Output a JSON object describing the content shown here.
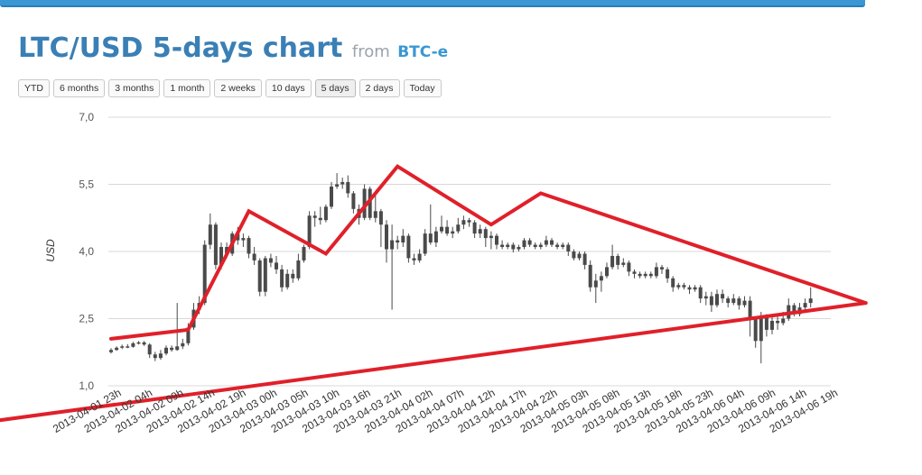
{
  "header": {
    "title": "LTC/USD 5-days chart",
    "from": "from",
    "source": "BTC-e"
  },
  "range_buttons": [
    "YTD",
    "6 months",
    "3 months",
    "1 month",
    "2 weeks",
    "10 days",
    "5 days",
    "2 days",
    "Today"
  ],
  "active_range": "5 days",
  "colors": {
    "accent": "#3a97d3",
    "title": "#3a7fb5",
    "candle": "#4a4a4a",
    "trendline": "#e0202a",
    "grid": "#d8d8d8"
  },
  "chart_data": {
    "type": "candlestick",
    "ylabel": "USD",
    "ylim": [
      1.0,
      7.0
    ],
    "y_ticks": [
      "7,0",
      "5,5",
      "4,0",
      "2,5",
      "1,0"
    ],
    "y_tick_values": [
      7.0,
      5.5,
      4.0,
      2.5,
      1.0
    ],
    "x_ticks": [
      "2013-04-01 23h",
      "2013-04-02 04h",
      "2013-04-02 09h",
      "2013-04-02 14h",
      "2013-04-02 19h",
      "2013-04-03 00h",
      "2013-04-03 05h",
      "2013-04-03 10h",
      "2013-04-03 16h",
      "2013-04-03 21h",
      "2013-04-04 02h",
      "2013-04-04 07h",
      "2013-04-04 12h",
      "2013-04-04 17h",
      "2013-04-04 22h",
      "2013-04-05 03h",
      "2013-04-05 08h",
      "2013-04-05 13h",
      "2013-04-05 18h",
      "2013-04-05 23h",
      "2013-04-06 04h",
      "2013-04-06 09h",
      "2013-04-06 14h",
      "2013-04-06 19h"
    ],
    "grid": true,
    "candles": [
      {
        "i": 0,
        "o": 1.75,
        "c": 1.8,
        "h": 1.84,
        "l": 1.72
      },
      {
        "i": 1,
        "o": 1.8,
        "c": 1.85,
        "h": 1.88,
        "l": 1.78
      },
      {
        "i": 2,
        "o": 1.85,
        "c": 1.88,
        "h": 1.92,
        "l": 1.82
      },
      {
        "i": 3,
        "o": 1.88,
        "c": 1.87,
        "h": 1.93,
        "l": 1.84
      },
      {
        "i": 4,
        "o": 1.87,
        "c": 1.95,
        "h": 1.98,
        "l": 1.85
      },
      {
        "i": 5,
        "o": 1.95,
        "c": 1.97,
        "h": 2.0,
        "l": 1.92
      },
      {
        "i": 6,
        "o": 1.97,
        "c": 1.92,
        "h": 2.0,
        "l": 1.89
      },
      {
        "i": 7,
        "o": 1.92,
        "c": 1.7,
        "h": 1.95,
        "l": 1.62
      },
      {
        "i": 8,
        "o": 1.7,
        "c": 1.62,
        "h": 1.76,
        "l": 1.55
      },
      {
        "i": 9,
        "o": 1.62,
        "c": 1.72,
        "h": 1.8,
        "l": 1.58
      },
      {
        "i": 10,
        "o": 1.72,
        "c": 1.85,
        "h": 1.9,
        "l": 1.68
      },
      {
        "i": 11,
        "o": 1.85,
        "c": 1.8,
        "h": 1.9,
        "l": 1.76
      },
      {
        "i": 12,
        "o": 1.8,
        "c": 1.88,
        "h": 2.85,
        "l": 1.78
      },
      {
        "i": 13,
        "o": 1.88,
        "c": 1.95,
        "h": 2.05,
        "l": 1.82
      },
      {
        "i": 14,
        "o": 1.95,
        "c": 2.3,
        "h": 2.4,
        "l": 1.9
      },
      {
        "i": 15,
        "o": 2.3,
        "c": 2.7,
        "h": 2.85,
        "l": 2.25
      },
      {
        "i": 16,
        "o": 2.7,
        "c": 2.85,
        "h": 3.0,
        "l": 2.6
      },
      {
        "i": 17,
        "o": 2.85,
        "c": 4.15,
        "h": 4.25,
        "l": 2.8
      },
      {
        "i": 18,
        "o": 4.15,
        "c": 4.6,
        "h": 4.85,
        "l": 4.05
      },
      {
        "i": 19,
        "o": 4.6,
        "c": 3.7,
        "h": 4.65,
        "l": 3.6
      },
      {
        "i": 20,
        "o": 3.7,
        "c": 4.1,
        "h": 4.2,
        "l": 3.6
      },
      {
        "i": 21,
        "o": 4.1,
        "c": 3.95,
        "h": 4.2,
        "l": 3.85
      },
      {
        "i": 22,
        "o": 3.95,
        "c": 4.4,
        "h": 4.45,
        "l": 3.9
      },
      {
        "i": 23,
        "o": 4.4,
        "c": 4.25,
        "h": 4.55,
        "l": 4.15
      },
      {
        "i": 24,
        "o": 4.25,
        "c": 4.3,
        "h": 4.4,
        "l": 4.1
      },
      {
        "i": 25,
        "o": 4.3,
        "c": 3.95,
        "h": 4.35,
        "l": 3.85
      },
      {
        "i": 26,
        "o": 3.95,
        "c": 3.8,
        "h": 4.1,
        "l": 3.7
      },
      {
        "i": 27,
        "o": 3.8,
        "c": 3.1,
        "h": 3.85,
        "l": 3.0
      },
      {
        "i": 28,
        "o": 3.1,
        "c": 3.85,
        "h": 3.9,
        "l": 3.0
      },
      {
        "i": 29,
        "o": 3.85,
        "c": 3.75,
        "h": 3.95,
        "l": 3.65
      },
      {
        "i": 30,
        "o": 3.75,
        "c": 3.6,
        "h": 3.9,
        "l": 3.5
      },
      {
        "i": 31,
        "o": 3.6,
        "c": 3.2,
        "h": 3.7,
        "l": 3.1
      },
      {
        "i": 32,
        "o": 3.2,
        "c": 3.5,
        "h": 3.6,
        "l": 3.15
      },
      {
        "i": 33,
        "o": 3.5,
        "c": 3.4,
        "h": 3.6,
        "l": 3.3
      },
      {
        "i": 34,
        "o": 3.4,
        "c": 3.8,
        "h": 3.95,
        "l": 3.35
      },
      {
        "i": 35,
        "o": 3.8,
        "c": 4.1,
        "h": 4.15,
        "l": 3.75
      },
      {
        "i": 36,
        "o": 4.1,
        "c": 4.8,
        "h": 4.9,
        "l": 4.05
      },
      {
        "i": 37,
        "o": 4.8,
        "c": 4.75,
        "h": 4.9,
        "l": 4.55
      },
      {
        "i": 38,
        "o": 4.75,
        "c": 4.7,
        "h": 5.0,
        "l": 4.6
      },
      {
        "i": 39,
        "o": 4.7,
        "c": 5.0,
        "h": 5.05,
        "l": 4.65
      },
      {
        "i": 40,
        "o": 5.0,
        "c": 5.45,
        "h": 5.55,
        "l": 4.95
      },
      {
        "i": 41,
        "o": 5.45,
        "c": 5.5,
        "h": 5.75,
        "l": 5.4
      },
      {
        "i": 42,
        "o": 5.5,
        "c": 5.55,
        "h": 5.65,
        "l": 5.4
      },
      {
        "i": 43,
        "o": 5.55,
        "c": 5.3,
        "h": 5.7,
        "l": 5.2
      },
      {
        "i": 44,
        "o": 5.3,
        "c": 4.95,
        "h": 5.35,
        "l": 4.85
      },
      {
        "i": 45,
        "o": 4.95,
        "c": 4.75,
        "h": 5.05,
        "l": 4.6
      },
      {
        "i": 46,
        "o": 4.75,
        "c": 5.4,
        "h": 5.5,
        "l": 4.7
      },
      {
        "i": 47,
        "o": 5.4,
        "c": 4.75,
        "h": 5.45,
        "l": 4.7
      },
      {
        "i": 48,
        "o": 4.75,
        "c": 4.9,
        "h": 5.3,
        "l": 4.65
      },
      {
        "i": 49,
        "o": 4.9,
        "c": 4.6,
        "h": 4.95,
        "l": 4.1
      },
      {
        "i": 50,
        "o": 4.6,
        "c": 4.05,
        "h": 4.7,
        "l": 3.75
      },
      {
        "i": 51,
        "o": 4.05,
        "c": 4.25,
        "h": 4.6,
        "l": 2.7
      },
      {
        "i": 52,
        "o": 4.25,
        "c": 4.2,
        "h": 4.35,
        "l": 4.05
      },
      {
        "i": 53,
        "o": 4.2,
        "c": 4.35,
        "h": 4.5,
        "l": 4.1
      },
      {
        "i": 54,
        "o": 4.35,
        "c": 3.85,
        "h": 4.4,
        "l": 3.75
      },
      {
        "i": 55,
        "o": 3.85,
        "c": 3.8,
        "h": 3.95,
        "l": 3.7
      },
      {
        "i": 56,
        "o": 3.8,
        "c": 3.95,
        "h": 4.05,
        "l": 3.75
      },
      {
        "i": 57,
        "o": 3.95,
        "c": 4.4,
        "h": 4.5,
        "l": 3.9
      },
      {
        "i": 58,
        "o": 4.4,
        "c": 4.2,
        "h": 5.05,
        "l": 4.15
      },
      {
        "i": 59,
        "o": 4.2,
        "c": 4.45,
        "h": 4.55,
        "l": 4.1
      },
      {
        "i": 60,
        "o": 4.45,
        "c": 4.55,
        "h": 4.8,
        "l": 4.4
      },
      {
        "i": 61,
        "o": 4.55,
        "c": 4.4,
        "h": 4.7,
        "l": 4.35
      },
      {
        "i": 62,
        "o": 4.4,
        "c": 4.45,
        "h": 4.55,
        "l": 4.3
      },
      {
        "i": 63,
        "o": 4.45,
        "c": 4.6,
        "h": 4.75,
        "l": 4.4
      },
      {
        "i": 64,
        "o": 4.6,
        "c": 4.7,
        "h": 4.8,
        "l": 4.5
      },
      {
        "i": 65,
        "o": 4.7,
        "c": 4.65,
        "h": 4.75,
        "l": 4.55
      },
      {
        "i": 66,
        "o": 4.65,
        "c": 4.4,
        "h": 4.7,
        "l": 4.3
      },
      {
        "i": 67,
        "o": 4.4,
        "c": 4.5,
        "h": 4.6,
        "l": 4.3
      },
      {
        "i": 68,
        "o": 4.5,
        "c": 4.3,
        "h": 4.55,
        "l": 4.1
      },
      {
        "i": 69,
        "o": 4.3,
        "c": 4.35,
        "h": 4.45,
        "l": 4.05
      },
      {
        "i": 70,
        "o": 4.35,
        "c": 4.15,
        "h": 4.4,
        "l": 4.05
      },
      {
        "i": 71,
        "o": 4.15,
        "c": 4.1,
        "h": 4.25,
        "l": 4.05
      },
      {
        "i": 72,
        "o": 4.1,
        "c": 4.15,
        "h": 4.2,
        "l": 4.05
      },
      {
        "i": 73,
        "o": 4.15,
        "c": 4.05,
        "h": 4.2,
        "l": 3.98
      },
      {
        "i": 74,
        "o": 4.05,
        "c": 4.1,
        "h": 4.15,
        "l": 4.0
      },
      {
        "i": 75,
        "o": 4.1,
        "c": 4.25,
        "h": 4.3,
        "l": 4.05
      },
      {
        "i": 76,
        "o": 4.25,
        "c": 4.15,
        "h": 4.3,
        "l": 4.1
      },
      {
        "i": 77,
        "o": 4.15,
        "c": 4.1,
        "h": 4.2,
        "l": 4.05
      },
      {
        "i": 78,
        "o": 4.1,
        "c": 4.15,
        "h": 4.2,
        "l": 4.05
      },
      {
        "i": 79,
        "o": 4.15,
        "c": 4.25,
        "h": 4.35,
        "l": 4.1
      },
      {
        "i": 80,
        "o": 4.25,
        "c": 4.15,
        "h": 4.3,
        "l": 4.1
      },
      {
        "i": 81,
        "o": 4.15,
        "c": 4.1,
        "h": 4.2,
        "l": 4.05
      },
      {
        "i": 82,
        "o": 4.1,
        "c": 4.15,
        "h": 4.2,
        "l": 4.05
      },
      {
        "i": 83,
        "o": 4.15,
        "c": 4.0,
        "h": 4.2,
        "l": 3.9
      },
      {
        "i": 84,
        "o": 4.0,
        "c": 3.85,
        "h": 4.05,
        "l": 3.8
      },
      {
        "i": 85,
        "o": 3.85,
        "c": 3.95,
        "h": 4.0,
        "l": 3.8
      },
      {
        "i": 86,
        "o": 3.95,
        "c": 3.7,
        "h": 4.0,
        "l": 3.6
      },
      {
        "i": 87,
        "o": 3.7,
        "c": 3.2,
        "h": 3.8,
        "l": 3.1
      },
      {
        "i": 88,
        "o": 3.2,
        "c": 3.35,
        "h": 3.5,
        "l": 2.85
      },
      {
        "i": 89,
        "o": 3.35,
        "c": 3.45,
        "h": 3.55,
        "l": 3.1
      },
      {
        "i": 90,
        "o": 3.45,
        "c": 3.65,
        "h": 3.75,
        "l": 3.4
      },
      {
        "i": 91,
        "o": 3.65,
        "c": 3.9,
        "h": 4.15,
        "l": 3.6
      },
      {
        "i": 92,
        "o": 3.9,
        "c": 3.7,
        "h": 3.95,
        "l": 3.6
      },
      {
        "i": 93,
        "o": 3.7,
        "c": 3.75,
        "h": 3.85,
        "l": 3.65
      },
      {
        "i": 94,
        "o": 3.75,
        "c": 3.55,
        "h": 3.8,
        "l": 3.45
      },
      {
        "i": 95,
        "o": 3.55,
        "c": 3.5,
        "h": 3.6,
        "l": 3.4
      },
      {
        "i": 96,
        "o": 3.5,
        "c": 3.45,
        "h": 3.55,
        "l": 3.4
      },
      {
        "i": 97,
        "o": 3.45,
        "c": 3.5,
        "h": 3.55,
        "l": 3.4
      },
      {
        "i": 98,
        "o": 3.5,
        "c": 3.45,
        "h": 3.55,
        "l": 3.4
      },
      {
        "i": 99,
        "o": 3.45,
        "c": 3.65,
        "h": 3.75,
        "l": 3.4
      },
      {
        "i": 100,
        "o": 3.65,
        "c": 3.6,
        "h": 3.7,
        "l": 3.5
      },
      {
        "i": 101,
        "o": 3.6,
        "c": 3.4,
        "h": 3.65,
        "l": 3.3
      },
      {
        "i": 102,
        "o": 3.4,
        "c": 3.2,
        "h": 3.45,
        "l": 3.1
      },
      {
        "i": 103,
        "o": 3.2,
        "c": 3.25,
        "h": 3.3,
        "l": 3.15
      },
      {
        "i": 104,
        "o": 3.25,
        "c": 3.2,
        "h": 3.3,
        "l": 3.15
      },
      {
        "i": 105,
        "o": 3.2,
        "c": 3.15,
        "h": 3.25,
        "l": 3.05
      },
      {
        "i": 106,
        "o": 3.15,
        "c": 3.2,
        "h": 3.25,
        "l": 3.1
      },
      {
        "i": 107,
        "o": 3.2,
        "c": 2.95,
        "h": 3.25,
        "l": 2.85
      },
      {
        "i": 108,
        "o": 2.95,
        "c": 3.0,
        "h": 3.1,
        "l": 2.8
      },
      {
        "i": 109,
        "o": 3.0,
        "c": 2.8,
        "h": 3.1,
        "l": 2.65
      },
      {
        "i": 110,
        "o": 2.8,
        "c": 3.05,
        "h": 3.15,
        "l": 2.75
      },
      {
        "i": 111,
        "o": 3.05,
        "c": 2.95,
        "h": 3.15,
        "l": 2.85
      },
      {
        "i": 112,
        "o": 2.95,
        "c": 2.85,
        "h": 3.0,
        "l": 2.75
      },
      {
        "i": 113,
        "o": 2.85,
        "c": 2.95,
        "h": 3.05,
        "l": 2.8
      },
      {
        "i": 114,
        "o": 2.95,
        "c": 2.8,
        "h": 3.0,
        "l": 2.7
      },
      {
        "i": 115,
        "o": 2.8,
        "c": 2.9,
        "h": 3.0,
        "l": 2.75
      },
      {
        "i": 116,
        "o": 2.9,
        "c": 2.5,
        "h": 3.0,
        "l": 2.1
      },
      {
        "i": 117,
        "o": 2.5,
        "c": 2.0,
        "h": 2.55,
        "l": 1.85
      },
      {
        "i": 118,
        "o": 2.0,
        "c": 2.55,
        "h": 2.65,
        "l": 1.5
      },
      {
        "i": 119,
        "o": 2.55,
        "c": 2.25,
        "h": 2.6,
        "l": 2.1
      },
      {
        "i": 120,
        "o": 2.25,
        "c": 2.45,
        "h": 2.55,
        "l": 2.15
      },
      {
        "i": 121,
        "o": 2.45,
        "c": 2.4,
        "h": 2.55,
        "l": 2.25
      },
      {
        "i": 122,
        "o": 2.4,
        "c": 2.5,
        "h": 2.65,
        "l": 2.35
      },
      {
        "i": 123,
        "o": 2.5,
        "c": 2.8,
        "h": 2.95,
        "l": 2.45
      },
      {
        "i": 124,
        "o": 2.8,
        "c": 2.6,
        "h": 2.85,
        "l": 2.55
      },
      {
        "i": 125,
        "o": 2.6,
        "c": 2.75,
        "h": 2.85,
        "l": 2.55
      },
      {
        "i": 126,
        "o": 2.75,
        "c": 2.85,
        "h": 2.95,
        "l": 2.7
      },
      {
        "i": 127,
        "o": 2.85,
        "c": 2.95,
        "h": 3.2,
        "l": 2.75
      }
    ],
    "annotations": [
      {
        "type": "polyline",
        "points": [
          [
            0,
            2.05
          ],
          [
            14,
            2.25
          ],
          [
            25,
            4.9
          ],
          [
            39,
            3.95
          ],
          [
            52,
            5.9
          ],
          [
            69,
            4.6
          ],
          [
            78,
            5.3
          ],
          [
            137,
            2.85
          ]
        ]
      },
      {
        "type": "polyline",
        "points": [
          [
            -25,
            0.15
          ],
          [
            137,
            2.85
          ]
        ]
      }
    ]
  }
}
